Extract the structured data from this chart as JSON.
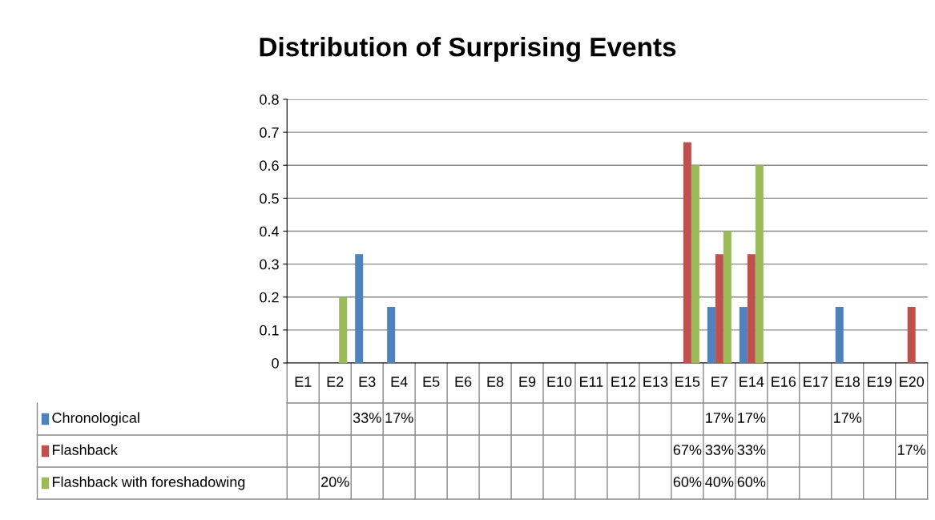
{
  "chart_data": {
    "type": "bar",
    "title": "Distribution of Surprising Events",
    "categories": [
      "E1",
      "E2",
      "E3",
      "E4",
      "E5",
      "E6",
      "E8",
      "E9",
      "E10",
      "E11",
      "E12",
      "E13",
      "E15",
      "E7",
      "E14",
      "E16",
      "E17",
      "E18",
      "E19",
      "E20"
    ],
    "series": [
      {
        "name": "Chronological",
        "color": "#4f81bd",
        "values": [
          null,
          null,
          0.33,
          0.17,
          null,
          null,
          null,
          null,
          null,
          null,
          null,
          null,
          null,
          0.17,
          0.17,
          null,
          null,
          0.17,
          null,
          null
        ],
        "value_labels": [
          null,
          null,
          "33%",
          "17%",
          null,
          null,
          null,
          null,
          null,
          null,
          null,
          null,
          null,
          "17%",
          "17%",
          null,
          null,
          "17%",
          null,
          null
        ]
      },
      {
        "name": "Flashback",
        "color": "#c0504d",
        "values": [
          null,
          null,
          null,
          null,
          null,
          null,
          null,
          null,
          null,
          null,
          null,
          null,
          0.67,
          0.33,
          0.33,
          null,
          null,
          null,
          null,
          0.17
        ],
        "value_labels": [
          null,
          null,
          null,
          null,
          null,
          null,
          null,
          null,
          null,
          null,
          null,
          null,
          "67%",
          "33%",
          "33%",
          null,
          null,
          null,
          null,
          "17%"
        ]
      },
      {
        "name": "Flashback with foreshadowing",
        "color": "#9bbb59",
        "values": [
          null,
          0.2,
          null,
          null,
          null,
          null,
          null,
          null,
          null,
          null,
          null,
          null,
          0.6,
          0.4,
          0.6,
          null,
          null,
          null,
          null,
          null
        ],
        "value_labels": [
          null,
          "20%",
          null,
          null,
          null,
          null,
          null,
          null,
          null,
          null,
          null,
          null,
          "60%",
          "40%",
          "60%",
          null,
          null,
          null,
          null,
          null
        ]
      }
    ],
    "ylim": [
      0,
      0.8
    ],
    "yticks": [
      0,
      0.1,
      0.2,
      0.3,
      0.4,
      0.5,
      0.6,
      0.7,
      0.8
    ],
    "grid": "y",
    "legend": "bottom left"
  }
}
